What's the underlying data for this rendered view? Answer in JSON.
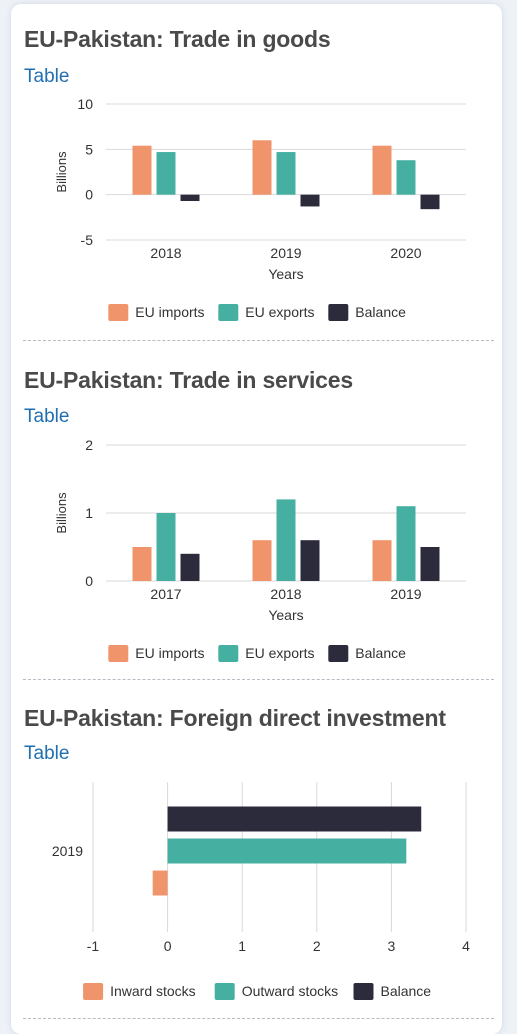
{
  "colors": {
    "imports": "#f0946b",
    "exports": "#45b0a1",
    "balance": "#2b2b3b",
    "grid": "#d9d9d9",
    "axis_text": "#333333"
  },
  "table_label": "Table",
  "charts": [
    {
      "title": "EU-Pakistan: Trade in goods",
      "chart_data": {
        "type": "bar",
        "orientation": "vertical",
        "categories": [
          "2018",
          "2019",
          "2020"
        ],
        "series": [
          {
            "name": "EU imports",
            "values": [
              5.4,
              6.0,
              5.4
            ]
          },
          {
            "name": "EU exports",
            "values": [
              4.7,
              4.7,
              3.8
            ]
          },
          {
            "name": "Balance",
            "values": [
              -0.7,
              -1.3,
              -1.6
            ]
          }
        ],
        "xlabel": "Years",
        "ylabel": "Billions",
        "ylim": [
          -5,
          10
        ],
        "yticks": [
          "10",
          "5",
          "0",
          "-5"
        ],
        "grid": true,
        "legend": "bottom"
      }
    },
    {
      "title": "EU-Pakistan: Trade in services",
      "chart_data": {
        "type": "bar",
        "orientation": "vertical",
        "categories": [
          "2017",
          "2018",
          "2019"
        ],
        "series": [
          {
            "name": "EU imports",
            "values": [
              0.5,
              0.6,
              0.6
            ]
          },
          {
            "name": "EU exports",
            "values": [
              1.0,
              1.2,
              1.1
            ]
          },
          {
            "name": "Balance",
            "values": [
              0.4,
              0.6,
              0.5
            ]
          }
        ],
        "xlabel": "Years",
        "ylabel": "Billions",
        "ylim": [
          0,
          2
        ],
        "yticks": [
          "2",
          "1",
          "0"
        ],
        "grid": true,
        "legend": "bottom"
      }
    },
    {
      "title": "EU-Pakistan: Foreign direct investment",
      "chart_data": {
        "type": "bar",
        "orientation": "horizontal",
        "categories": [
          "2019"
        ],
        "series": [
          {
            "name": "Inward stocks",
            "values": [
              -0.2
            ]
          },
          {
            "name": "Outward stocks",
            "values": [
              3.2
            ]
          },
          {
            "name": "Balance",
            "values": [
              3.4
            ]
          }
        ],
        "xlim": [
          -1,
          4
        ],
        "xticks": [
          "-1",
          "0",
          "1",
          "2",
          "3",
          "4"
        ],
        "grid": true,
        "legend": "bottom"
      }
    }
  ]
}
